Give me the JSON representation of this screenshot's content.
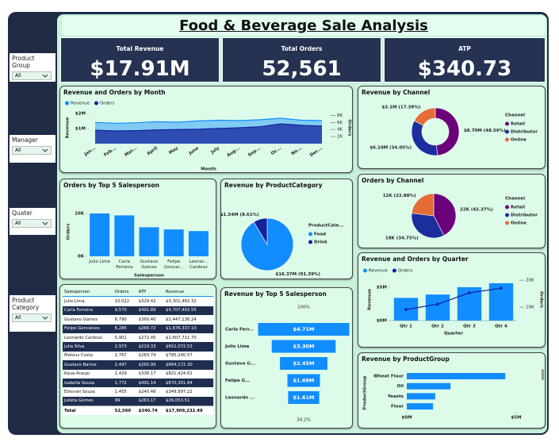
{
  "header": {
    "title": "Food & Beverage Sale Analysis"
  },
  "kpis": [
    {
      "label": "Total Revenue",
      "value": "$17.91M"
    },
    {
      "label": "Total Orders",
      "value": "52,561"
    },
    {
      "label": "ATP",
      "value": "$340.73"
    }
  ],
  "filters": [
    {
      "label": "Product Group",
      "selection": "All"
    },
    {
      "label": "Manager",
      "selection": "All"
    },
    {
      "label": "Quater",
      "selection": "All"
    },
    {
      "label": "Product Category",
      "selection": "All"
    }
  ],
  "table": {
    "columns": [
      "Salesperson",
      "Orders",
      "ATP",
      "Revenue"
    ],
    "rows": [
      [
        "Julio Lima",
        "10,022",
        "$329.42",
        "$3,301,482.32"
      ],
      [
        "Carla Ferreira",
        "9,570",
        "$491.89",
        "$4,707,402.55"
      ],
      [
        "Gustavo Gomes",
        "6,790",
        "$360.40",
        "$2,447,136.24"
      ],
      [
        "Felipe Goncalves",
        "6,285",
        "$266.72",
        "$1,676,337.10"
      ],
      [
        "Leonardo Cardoso",
        "5,901",
        "$272.45",
        "$1,607,711.70"
      ],
      [
        "Julia Silva",
        "2,973",
        "$219.33",
        "$652,072.53"
      ],
      [
        "Mateus Costa",
        "2,767",
        "$283.79",
        "$785,240.57"
      ],
      [
        "Gustavo Barros",
        "2,497",
        "$265.99",
        "$664,172.30"
      ],
      [
        "Kaua Araujo",
        "2,429",
        "$338.17",
        "$821,424.61"
      ],
      [
        "Isabella Sousa",
        "1,772",
        "$491.14",
        "$870,301.84"
      ],
      [
        "Estevan Souza",
        "1,455",
        "$240.48",
        "$349,897.22"
      ],
      [
        "Julieta Gomes",
        "99",
        "$263.17",
        "$26,053.51"
      ]
    ],
    "total": [
      "Total",
      "52,560",
      "$340.74",
      "$17,909,232.49"
    ]
  },
  "chart_data": [
    {
      "type": "area",
      "title": "Revenue and Orders by Month",
      "x_label": "Month",
      "y_label": "Revenue",
      "y2_label": "Orders",
      "categories": [
        "Jan...",
        "Feb...",
        "Mar...",
        "April",
        "May",
        "June",
        "July",
        "Aug...",
        "Sep...",
        "Oc...",
        "No...",
        "Dec..."
      ],
      "series": [
        {
          "name": "Revenue",
          "color": "#118DFF",
          "values": [
            1400000,
            1350000,
            1380000,
            1450000,
            1420000,
            1500000,
            1550000,
            1520000,
            1580000,
            1680000,
            1550000,
            1530000
          ]
        },
        {
          "name": "Orders",
          "color": "#12239E",
          "axis": "y2",
          "values": [
            3800,
            3600,
            3700,
            3900,
            4000,
            4100,
            4300,
            4500,
            4800,
            5600,
            5200,
            5000
          ]
        }
      ],
      "ylim": [
        0,
        2100000
      ],
      "yticks": [
        {
          "value": 1000000,
          "label": "$1M"
        },
        {
          "value": 2000000,
          "label": "$2M"
        }
      ],
      "y2lim": [
        0,
        9000
      ],
      "y2ticks": [
        {
          "value": 2000,
          "label": "2K"
        },
        {
          "value": 4000,
          "label": "4K"
        },
        {
          "value": 6000,
          "label": "6K"
        },
        {
          "value": 8000,
          "label": "8K"
        }
      ],
      "legend": "top-left"
    },
    {
      "type": "donut",
      "title": "Revenue by Channel",
      "legend_title": "Channel",
      "categories": [
        "Retail",
        "Distributor",
        "Online"
      ],
      "values": [
        8.7,
        6.1,
        3.1
      ],
      "value_labels": [
        "$8.70M (48.56%)",
        "$6.10M (34.05%)",
        "$3.1M (17.39%)"
      ],
      "colors": [
        "#6B007B",
        "#1C2E9E",
        "#E66C37"
      ],
      "legend": "right"
    },
    {
      "type": "bar",
      "title": "Orders by Top 5 Salesperson",
      "x_label": "Salesperson",
      "y_label": "Orders",
      "categories": [
        "Julio Lima",
        "Carla Ferreira",
        "Gustavo Gomes",
        "Felipe Goncal...",
        "Leonar... Cardoso"
      ],
      "values": [
        10022,
        9570,
        6790,
        6285,
        5901
      ],
      "color": "#118DFF",
      "ylim": [
        0,
        11500
      ],
      "yticks": [
        {
          "value": 0,
          "label": "0K"
        },
        {
          "value": 10000,
          "label": "10K"
        }
      ]
    },
    {
      "type": "pie",
      "title": "Revenue by ProductCategory",
      "legend_title": "ProductCate...",
      "categories": [
        "Food",
        "Drink"
      ],
      "values": [
        16.37,
        1.54
      ],
      "value_labels": [
        "$16.37M (91.39%)",
        "$1.54M (8.61%)"
      ],
      "colors": [
        "#118DFF",
        "#12239E"
      ],
      "legend": "right"
    },
    {
      "type": "pie",
      "title": "Orders by Channel",
      "legend_title": "Channel",
      "categories": [
        "Retail",
        "Distributor",
        "Online"
      ],
      "values": [
        22,
        18,
        12
      ],
      "value_labels": [
        "22K (42.37%)",
        "18K (34.75%)",
        "12K (22.88%)"
      ],
      "colors": [
        "#6B007B",
        "#1C2E9E",
        "#E66C37"
      ],
      "legend": "right"
    },
    {
      "type": "combo",
      "title": "Revenue and Orders by Quarter",
      "x_label": "Quarter",
      "y_label": "Revenue",
      "y2_label": "Orders",
      "categories": [
        "Qtr 1",
        "Qtr 2",
        "Qtr 3",
        "Qtr 4"
      ],
      "series": [
        {
          "name": "Revenue",
          "color": "#118DFF",
          "values": [
            3400000,
            3900000,
            5000000,
            5600000
          ]
        },
        {
          "name": "Orders",
          "color": "#12239E",
          "axis": "y2",
          "values": [
            9100,
            11100,
            15300,
            17000
          ]
        }
      ],
      "ylim": [
        0,
        6300000
      ],
      "yticks": [
        {
          "value": 0,
          "label": "$0M"
        },
        {
          "value": 5000000,
          "label": "$5M"
        }
      ],
      "y2lim": [
        5000,
        20600
      ],
      "y2ticks": [
        {
          "value": 10000,
          "label": "10K"
        },
        {
          "value": 20000,
          "label": "20K"
        }
      ],
      "legend": "top-left"
    },
    {
      "type": "funnel",
      "title": "Revenue by Top 5 Salesperson",
      "categories": [
        "Carla Ferr...",
        "Julio Lima",
        "Gustavo G...",
        "Felipe G...",
        "Leonardo ..."
      ],
      "values": [
        4.71,
        3.3,
        2.45,
        1.68,
        1.61
      ],
      "value_labels": [
        "$4.71M",
        "$3.30M",
        "$2.45M",
        "$1.68M",
        "$1.61M"
      ],
      "top_label": "100%",
      "bottom_label": "34.2%",
      "color": "#118DFF"
    },
    {
      "type": "hbar",
      "title": "Revenue by ProductGroup",
      "y_label": "ProductGroup",
      "categories": [
        "Wheat Flour",
        "Oil",
        "Yeasts",
        "Flour"
      ],
      "values": [
        4500000,
        2000000,
        1300000,
        1200000
      ],
      "color": "#118DFF",
      "xlim": [
        0,
        5000000
      ],
      "xticks": [
        {
          "value": 0,
          "label": "$0M"
        },
        {
          "value": 5000000,
          "label": "$5M"
        }
      ]
    }
  ]
}
